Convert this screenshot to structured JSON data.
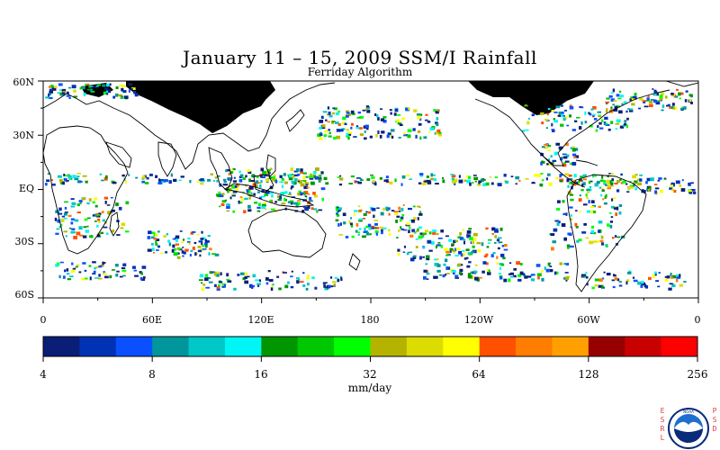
{
  "title": "January 11 – 15, 2009 SSM/I Rainfall",
  "subtitle": "Ferriday Algorithm",
  "lat_labels": [
    "60N",
    "30N",
    "EQ",
    "30S",
    "60S"
  ],
  "lon_labels": [
    "0",
    "60E",
    "120E",
    "180",
    "120W",
    "60W",
    "0"
  ],
  "colorbar": {
    "ticks": [
      "4",
      "8",
      "16",
      "32",
      "64",
      "128",
      "256"
    ],
    "unit": "mm/day",
    "colors": [
      "#0a1e78",
      "#0032b4",
      "#0a50ff",
      "#00969b",
      "#00c8c8",
      "#00f5f5",
      "#009600",
      "#00c800",
      "#00ff00",
      "#b4b400",
      "#dcdc00",
      "#ffff00",
      "#ff5000",
      "#ff7d00",
      "#ffa000",
      "#960000",
      "#c80000",
      "#ff0000"
    ]
  },
  "logo": {
    "left_letters": "ESRL",
    "right_letters": "PSD",
    "emblem_text": "NOAA",
    "colors": {
      "outer": "#ffffff",
      "ring": "#0a2a7a",
      "sky": "#1f6fd0",
      "bird": "#ffffff",
      "esrl": "#e03c3c"
    }
  },
  "map_colors": {
    "land_outline": "#000000",
    "snow_mask": "#000000"
  }
}
